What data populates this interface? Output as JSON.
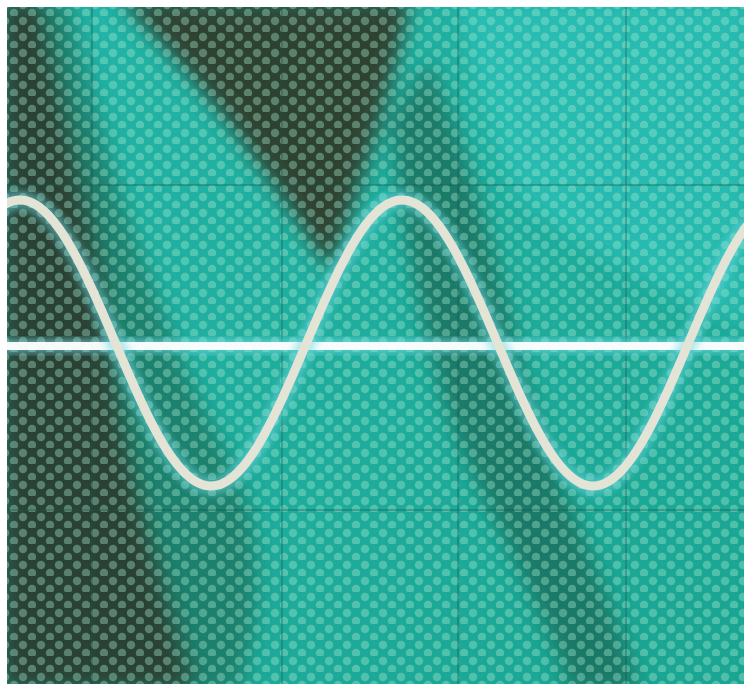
{
  "scene": {
    "colors": {
      "screen_base": "#1fae9c",
      "screen_bright": "#2cc4bd",
      "shadow_dark": "#2e3b2e",
      "shadow_mid": "#1f7a63",
      "trace_sine": "#e6e6d8",
      "trace_glow": "#6fd8e0",
      "trace_baseline": "#ffffff",
      "graticule": "#1b5a50",
      "phosphor_dot": "#9fe3c4"
    },
    "traces": [
      {
        "name": "sine-trace",
        "shape": "sine",
        "cycles_visible": 2
      },
      {
        "name": "baseline-trace",
        "shape": "flat"
      }
    ],
    "grid": {
      "columns": 5,
      "rows": 4
    }
  }
}
